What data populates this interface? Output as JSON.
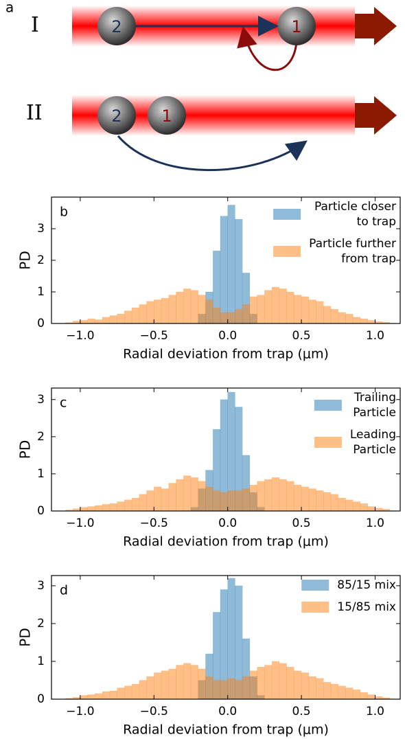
{
  "diagram": {
    "label": "a",
    "rows": [
      {
        "label": "I",
        "particles": [
          "2",
          "1"
        ]
      },
      {
        "label": "II",
        "particles": [
          "2",
          "1"
        ]
      }
    ]
  },
  "chart_data": [
    {
      "type": "histogram",
      "annotation": "b",
      "xlabel": "Radial deviation from trap (μm)",
      "ylabel": "PD",
      "xlim": [
        -1.195,
        1.17
      ],
      "ylim": [
        0,
        4.0
      ],
      "xticks": [
        {
          "value": -1.0,
          "label": "−1.0"
        },
        {
          "value": -0.5,
          "label": "−0.5"
        },
        {
          "value": 0.0,
          "label": "0.0"
        },
        {
          "value": 0.5,
          "label": "0.5"
        },
        {
          "value": 1.0,
          "label": "1.0"
        }
      ],
      "yticks": [
        0,
        1,
        2,
        3
      ],
      "alpha": 0.5,
      "legend": "upper right",
      "bins": [
        -1.1,
        -1.05,
        -1,
        -0.95,
        -0.9,
        -0.85,
        -0.8,
        -0.75,
        -0.7,
        -0.65,
        -0.6,
        -0.55,
        -0.5,
        -0.45,
        -0.4,
        -0.35,
        -0.3,
        -0.25,
        -0.2,
        -0.15,
        -0.1,
        -0.05,
        0,
        0.05,
        0.1,
        0.15,
        0.2,
        0.25,
        0.3,
        0.35,
        0.4,
        0.45,
        0.5,
        0.55,
        0.6,
        0.65,
        0.7,
        0.75,
        0.8,
        0.85,
        0.9,
        0.95,
        1,
        1.05,
        1.1
      ],
      "series": [
        {
          "name": "Particle closer\n to trap",
          "color": "#1f77b4",
          "values": [
            0,
            0,
            0,
            0,
            0,
            0,
            0,
            0,
            0,
            0,
            0,
            0,
            0,
            0,
            0,
            0,
            0,
            0,
            0.3,
            1.0,
            2.3,
            3.4,
            3.75,
            3.3,
            1.6,
            0.3,
            0,
            0,
            0,
            0,
            0,
            0,
            0,
            0,
            0,
            0,
            0,
            0,
            0,
            0,
            0,
            0,
            0,
            0
          ]
        },
        {
          "name": "Particle further\n from trap",
          "color": "#ff7f0e",
          "values": [
            0.03,
            0.08,
            0.1,
            0.15,
            0.12,
            0.2,
            0.25,
            0.3,
            0.4,
            0.5,
            0.6,
            0.7,
            0.75,
            0.8,
            0.9,
            1.0,
            1.1,
            1.05,
            0.9,
            0.75,
            0.5,
            0.35,
            0.35,
            0.45,
            0.6,
            0.85,
            0.9,
            1.05,
            1.15,
            1.1,
            1.0,
            0.9,
            0.85,
            0.75,
            0.7,
            0.55,
            0.45,
            0.35,
            0.3,
            0.2,
            0.15,
            0.1,
            0.06,
            0.04
          ]
        }
      ]
    },
    {
      "type": "histogram",
      "annotation": "c",
      "xlabel": "Radial deviation from trap (μm)",
      "ylabel": "PD",
      "xlim": [
        -1.195,
        1.17
      ],
      "ylim": [
        0,
        3.31
      ],
      "xticks": [
        {
          "value": -1.0,
          "label": "−1.0"
        },
        {
          "value": -0.5,
          "label": "−0.5"
        },
        {
          "value": 0.0,
          "label": "0.0"
        },
        {
          "value": 0.5,
          "label": "0.5"
        },
        {
          "value": 1.0,
          "label": "1.0"
        }
      ],
      "yticks": [
        0,
        1,
        2,
        3
      ],
      "alpha": 0.5,
      "legend": "upper right",
      "bins": [
        -1.1,
        -1.05,
        -1,
        -0.95,
        -0.9,
        -0.85,
        -0.8,
        -0.75,
        -0.7,
        -0.65,
        -0.6,
        -0.55,
        -0.5,
        -0.45,
        -0.4,
        -0.35,
        -0.3,
        -0.25,
        -0.2,
        -0.15,
        -0.1,
        -0.05,
        0,
        0.05,
        0.1,
        0.15,
        0.2,
        0.25,
        0.3,
        0.35,
        0.4,
        0.45,
        0.5,
        0.55,
        0.6,
        0.65,
        0.7,
        0.75,
        0.8,
        0.85,
        0.9,
        0.95,
        1,
        1.05,
        1.1
      ],
      "series": [
        {
          "name": "Trailing\nParticle",
          "color": "#1f77b4",
          "values": [
            0,
            0,
            0,
            0,
            0,
            0,
            0,
            0,
            0,
            0,
            0,
            0,
            0,
            0,
            0,
            0,
            0,
            0.1,
            0.6,
            1.1,
            2.2,
            3.0,
            3.2,
            2.8,
            1.5,
            0.5,
            0.1,
            0,
            0,
            0,
            0,
            0,
            0,
            0,
            0,
            0,
            0,
            0,
            0,
            0,
            0,
            0,
            0,
            0
          ]
        },
        {
          "name": "Leading\nParticle",
          "color": "#ff7f0e",
          "values": [
            0.03,
            0.06,
            0.1,
            0.12,
            0.15,
            0.18,
            0.2,
            0.25,
            0.3,
            0.35,
            0.45,
            0.55,
            0.65,
            0.6,
            0.75,
            0.85,
            0.95,
            0.9,
            0.8,
            0.65,
            0.55,
            0.5,
            0.55,
            0.55,
            0.6,
            0.7,
            0.8,
            0.85,
            0.9,
            0.85,
            0.8,
            0.7,
            0.65,
            0.6,
            0.55,
            0.5,
            0.45,
            0.35,
            0.3,
            0.25,
            0.2,
            0.12,
            0.08,
            0.05
          ]
        }
      ]
    },
    {
      "type": "histogram",
      "annotation": "d",
      "xlabel": "Radial deviation from trap (μm)",
      "ylabel": "PD",
      "xlim": [
        -1.195,
        1.17
      ],
      "ylim": [
        0,
        3.27
      ],
      "xticks": [
        {
          "value": -1.0,
          "label": "−1.0"
        },
        {
          "value": -0.5,
          "label": "−0.5"
        },
        {
          "value": 0.0,
          "label": "0.0"
        },
        {
          "value": 0.5,
          "label": "0.5"
        },
        {
          "value": 1.0,
          "label": "1.0"
        }
      ],
      "yticks": [
        0,
        1,
        2,
        3
      ],
      "alpha": 0.5,
      "legend": "upper right",
      "bins": [
        -1.1,
        -1.05,
        -1,
        -0.95,
        -0.9,
        -0.85,
        -0.8,
        -0.75,
        -0.7,
        -0.65,
        -0.6,
        -0.55,
        -0.5,
        -0.45,
        -0.4,
        -0.35,
        -0.3,
        -0.25,
        -0.2,
        -0.15,
        -0.1,
        -0.05,
        0,
        0.05,
        0.1,
        0.15,
        0.2,
        0.25,
        0.3,
        0.35,
        0.4,
        0.45,
        0.5,
        0.55,
        0.6,
        0.65,
        0.7,
        0.75,
        0.8,
        0.85,
        0.9,
        0.95,
        1,
        1.05,
        1.1
      ],
      "series": [
        {
          "name": "85/15 mix",
          "color": "#1f77b4",
          "values": [
            0,
            0,
            0,
            0,
            0,
            0,
            0,
            0,
            0,
            0,
            0,
            0,
            0,
            0,
            0,
            0,
            0,
            0,
            0.5,
            1.2,
            2.3,
            2.9,
            3.2,
            3.0,
            1.6,
            0.6,
            0.1,
            0,
            0,
            0,
            0,
            0,
            0,
            0,
            0,
            0,
            0,
            0,
            0,
            0,
            0,
            0,
            0,
            0
          ]
        },
        {
          "name": "15/85 mix",
          "color": "#ff7f0e",
          "values": [
            0.02,
            0.05,
            0.1,
            0.12,
            0.15,
            0.2,
            0.22,
            0.3,
            0.35,
            0.4,
            0.5,
            0.6,
            0.7,
            0.75,
            0.8,
            0.9,
            0.95,
            0.9,
            0.8,
            0.6,
            0.5,
            0.5,
            0.55,
            0.5,
            0.6,
            0.75,
            0.85,
            0.9,
            1.0,
            0.95,
            0.85,
            0.75,
            0.7,
            0.6,
            0.55,
            0.45,
            0.4,
            0.35,
            0.3,
            0.25,
            0.18,
            0.12,
            0.07,
            0.04
          ]
        }
      ]
    }
  ]
}
